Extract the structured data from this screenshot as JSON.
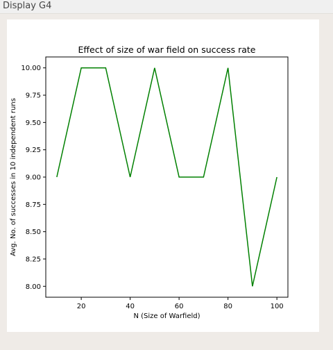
{
  "window": {
    "title": "Display G4"
  },
  "chart_data": {
    "type": "line",
    "title": "Effect of size of war field on success rate",
    "xlabel": "N (Size of Warfield)",
    "ylabel": "Avg. No. of successes in 10 independent runs",
    "x": [
      10,
      20,
      30,
      40,
      50,
      60,
      70,
      80,
      90,
      100
    ],
    "series": [
      {
        "values": [
          9.0,
          10.0,
          10.0,
          9.0,
          10.0,
          9.0,
          9.0,
          10.0,
          8.0,
          9.0
        ],
        "color": "#008000"
      }
    ],
    "xticks": [
      20,
      40,
      60,
      80,
      100
    ],
    "xtick_labels": [
      "20",
      "40",
      "60",
      "80",
      "100"
    ],
    "yticks": [
      8.0,
      8.25,
      8.5,
      8.75,
      9.0,
      9.25,
      9.5,
      9.75,
      10.0
    ],
    "ytick_labels": [
      "8.00",
      "8.25",
      "8.50",
      "8.75",
      "9.00",
      "9.25",
      "9.50",
      "9.75",
      "10.00"
    ],
    "xlim": [
      5.5,
      104.5
    ],
    "ylim": [
      7.9,
      10.1
    ],
    "grid": false,
    "legend": false
  }
}
